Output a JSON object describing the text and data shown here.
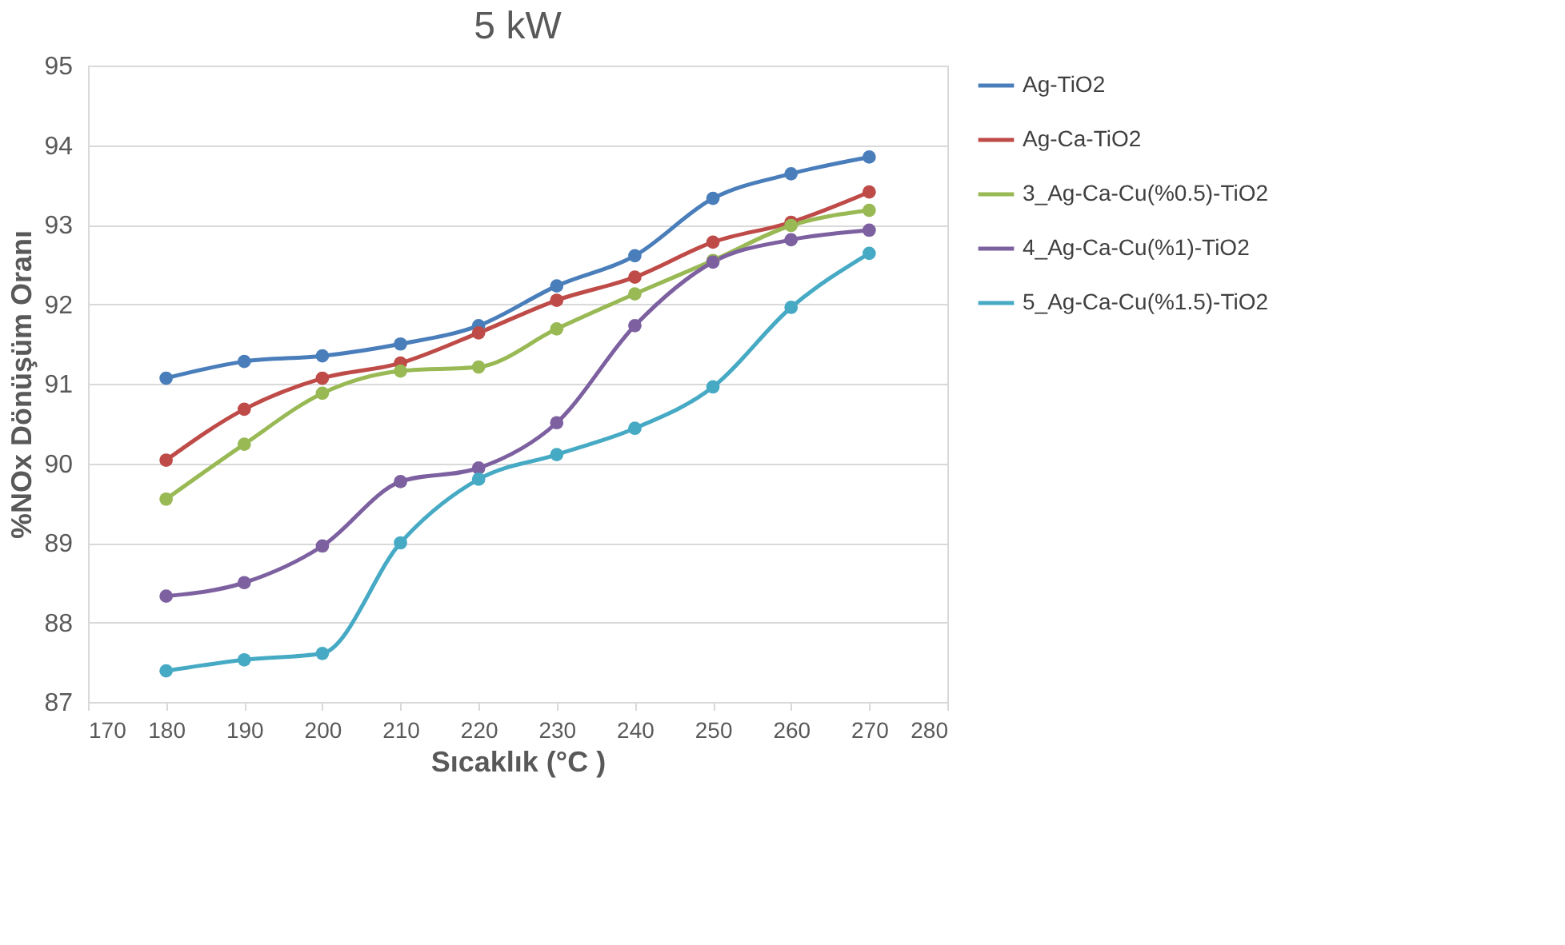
{
  "chart_data": {
    "type": "line",
    "title": "5 kW",
    "xlabel": "Sıcaklık (°C )",
    "ylabel": "%NOx Dönüşüm Oranı",
    "x": [
      180,
      190,
      200,
      210,
      220,
      230,
      240,
      250,
      260,
      270
    ],
    "xlim": [
      170,
      280
    ],
    "xticks": [
      170,
      180,
      190,
      200,
      210,
      220,
      230,
      240,
      250,
      260,
      270,
      280
    ],
    "ylim": [
      87,
      95
    ],
    "yticks": [
      87,
      88,
      89,
      90,
      91,
      92,
      93,
      94,
      95
    ],
    "grid": "y",
    "legend": "right",
    "marker": "circle",
    "line_style": "solid",
    "series": [
      {
        "name": "Ag-TiO2",
        "color": "#4a7ebb",
        "values": [
          91.07,
          91.28,
          91.35,
          91.5,
          91.73,
          92.23,
          92.61,
          93.33,
          93.64,
          93.85
        ]
      },
      {
        "name": "Ag-Ca-TiO2",
        "color": "#be4b48",
        "values": [
          90.04,
          90.68,
          91.07,
          91.26,
          91.64,
          92.05,
          92.34,
          92.78,
          93.03,
          93.41
        ]
      },
      {
        "name": "3_Ag-Ca-Cu(%0.5)-TiO2",
        "color": "#98b954",
        "values": [
          89.55,
          90.24,
          90.88,
          91.16,
          91.21,
          91.69,
          92.13,
          92.55,
          92.99,
          93.18
        ]
      },
      {
        "name": "4_Ag-Ca-Cu(%1)-TiO2",
        "color": "#7d60a0",
        "values": [
          88.33,
          88.5,
          88.96,
          89.77,
          89.94,
          90.51,
          91.73,
          92.53,
          92.81,
          92.93
        ]
      },
      {
        "name": "5_Ag-Ca-Cu(%1.5)-TiO2",
        "color": "#46aac5",
        "values": [
          87.39,
          87.53,
          87.61,
          89.0,
          89.8,
          90.11,
          90.44,
          90.96,
          91.96,
          92.64
        ]
      }
    ]
  }
}
